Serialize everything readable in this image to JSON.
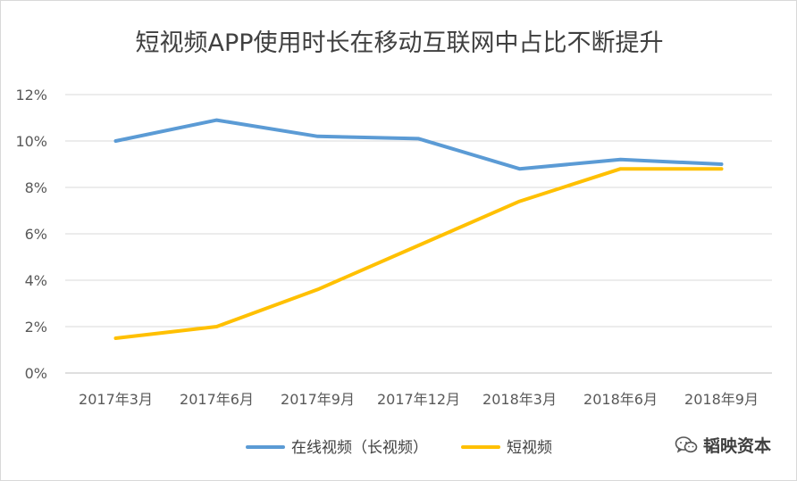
{
  "chart_data": {
    "type": "line",
    "title": "短视频APP使用时长在移动互联网中占比不断提升",
    "xlabel": "",
    "ylabel": "",
    "categories": [
      "2017年3月",
      "2017年6月",
      "2017年9月",
      "2017年12月",
      "2018年3月",
      "2018年6月",
      "2018年9月"
    ],
    "y_ticks": [
      "0%",
      "2%",
      "4%",
      "6%",
      "8%",
      "10%",
      "12%"
    ],
    "ylim": [
      0,
      12
    ],
    "grid": true,
    "legend_position": "bottom",
    "series": [
      {
        "name": "在线视频（长视频）",
        "color": "#5b9bd5",
        "values": [
          10.0,
          10.9,
          10.2,
          10.1,
          8.8,
          9.2,
          9.0
        ]
      },
      {
        "name": "短视频",
        "color": "#ffc000",
        "values": [
          1.5,
          2.0,
          3.6,
          5.5,
          7.4,
          8.8,
          8.8
        ]
      }
    ]
  },
  "watermark": {
    "icon": "wechat-icon",
    "text": "韬映资本"
  }
}
